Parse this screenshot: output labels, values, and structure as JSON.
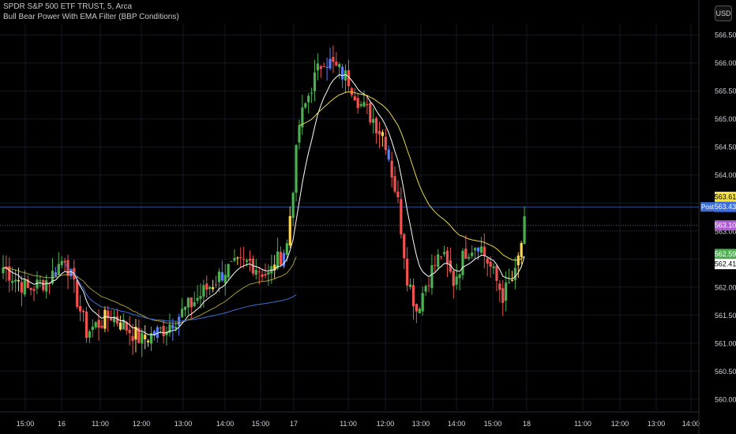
{
  "header": {
    "symbol_line": "SPDR S&P 500 ETF TRUST, 5, Arca",
    "indicator_line": "Bull Bear Power With EMA Filter (BBP Conditions)",
    "currency_button": "USD"
  },
  "colors": {
    "background": "#000000",
    "grid": "#151922",
    "axis_text": "#d1d4dc",
    "candle_up": "#4caf50",
    "candle_down": "#ef5350",
    "candle_yellow": "#ffd54f",
    "candle_blue": "#5c7cfa",
    "ema_fast": "#ffffff",
    "ema_slow": "#e8d84a",
    "vwap": "#3f6fd8",
    "price_line_post": "#4a6ee0",
    "price_line_last": "#9c4fc9"
  },
  "chart_data": {
    "type": "candlestick",
    "title": "SPDR S&P 500 ETF TRUST, 5, Arca",
    "indicator": "Bull Bear Power With EMA Filter (BBP Conditions)",
    "interval": "5",
    "exchange": "Arca",
    "currency": "USD",
    "ylim": [
      559.8,
      566.7
    ],
    "y_ticks": [
      "566.50",
      "566.00",
      "565.50",
      "565.00",
      "564.50",
      "564.00",
      "563.50",
      "563.00",
      "562.50",
      "562.00",
      "561.50",
      "561.00",
      "560.50",
      "560.00"
    ],
    "x_ticks": [
      "15:00",
      "16",
      "11:00",
      "12:00",
      "13:00",
      "14:00",
      "15:00",
      "17",
      "11:00",
      "12:00",
      "13:00",
      "14:00",
      "15:00",
      "18",
      "11:00",
      "12:00",
      "13:00",
      "14:00"
    ],
    "price_labels": [
      {
        "label": "",
        "value": "563.61",
        "color": "#f5e142",
        "text_color": "#000000"
      },
      {
        "label": "Post",
        "value": "563.43",
        "color": "#3b6fe0",
        "text_color": "#ffffff"
      },
      {
        "label": "",
        "value": "563.10",
        "color": "#b15ad8",
        "text_color": "#ffffff"
      },
      {
        "label": "",
        "value": "562.59",
        "color": "#4caf50",
        "text_color": "#ffffff"
      },
      {
        "label": "",
        "value": "562.41",
        "color": "#ffffff",
        "text_color": "#000000"
      }
    ],
    "session_anchors": [
      {
        "t": 0,
        "price": 562.35
      },
      {
        "t": 8,
        "price": 561.95
      },
      {
        "t": 15,
        "price": 562.15
      },
      {
        "t": 20,
        "price": 562.55
      },
      {
        "t": 27,
        "price": 561.2
      },
      {
        "t": 35,
        "price": 561.5
      },
      {
        "t": 45,
        "price": 561.05
      },
      {
        "t": 52,
        "price": 561.25
      },
      {
        "t": 62,
        "price": 561.75
      },
      {
        "t": 72,
        "price": 562.3
      },
      {
        "t": 80,
        "price": 562.45
      },
      {
        "t": 86,
        "price": 562.2
      },
      {
        "t": 92,
        "price": 562.75
      },
      {
        "t": 96,
        "price": 564.9
      },
      {
        "t": 100,
        "price": 565.6
      },
      {
        "t": 104,
        "price": 566.1
      },
      {
        "t": 108,
        "price": 565.9
      },
      {
        "t": 112,
        "price": 565.7
      },
      {
        "t": 116,
        "price": 565.25
      },
      {
        "t": 120,
        "price": 565.0
      },
      {
        "t": 124,
        "price": 564.6
      },
      {
        "t": 128,
        "price": 563.5
      },
      {
        "t": 131,
        "price": 562.2
      },
      {
        "t": 134,
        "price": 561.6
      },
      {
        "t": 138,
        "price": 562.2
      },
      {
        "t": 142,
        "price": 562.6
      },
      {
        "t": 146,
        "price": 562.1
      },
      {
        "t": 150,
        "price": 562.65
      },
      {
        "t": 154,
        "price": 562.8
      },
      {
        "t": 158,
        "price": 562.35
      },
      {
        "t": 162,
        "price": 561.85
      },
      {
        "t": 166,
        "price": 562.2
      },
      {
        "t": 169,
        "price": 563.1
      }
    ]
  }
}
